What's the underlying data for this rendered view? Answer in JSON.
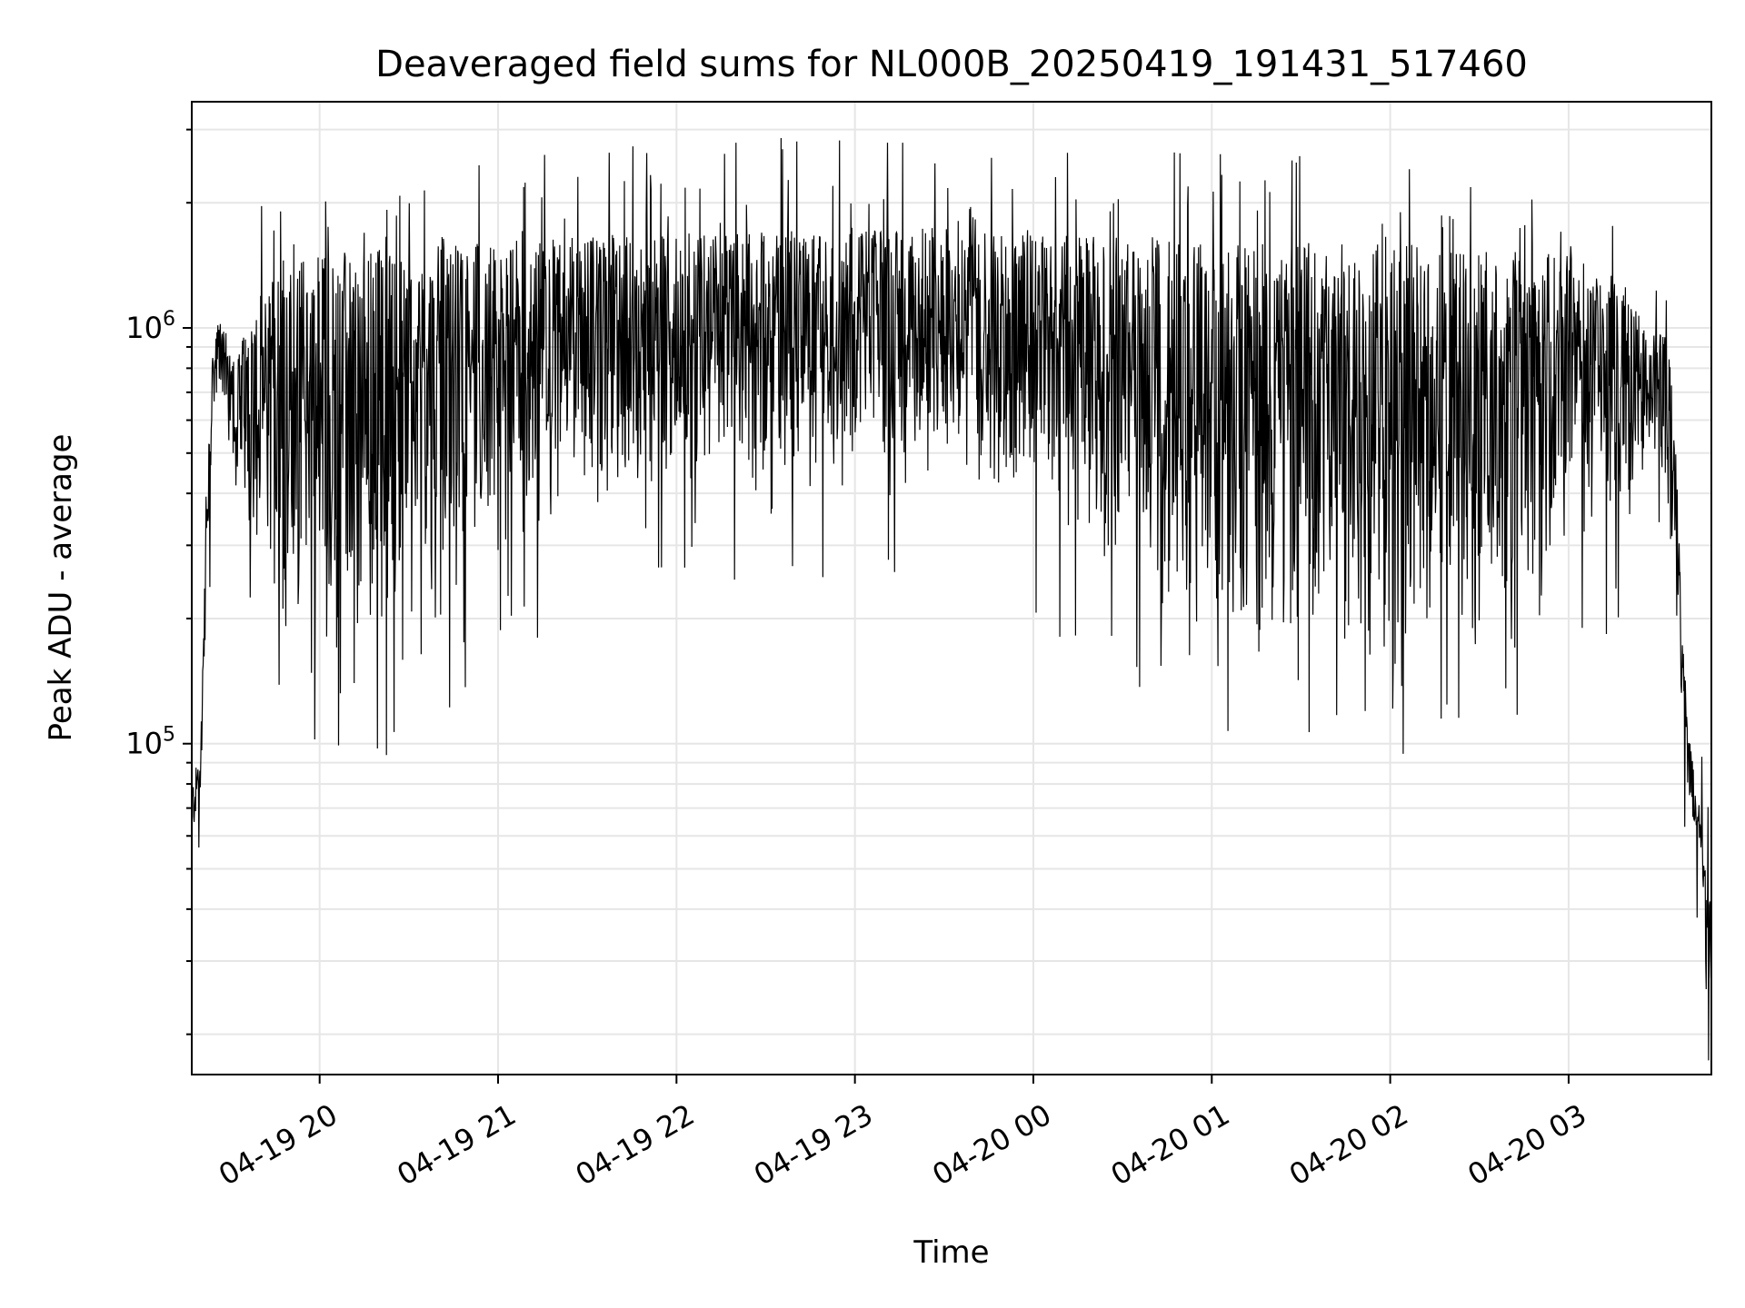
{
  "chart_data": {
    "type": "line",
    "title": "Deaveraged field sums for NL000B_20250419_191431_517460",
    "xlabel": "Time",
    "ylabel": "Peak ADU - average",
    "yscale": "log",
    "ylim": [
      16000,
      3500000
    ],
    "xlim": [
      "2025-04-19 19:17",
      "2025-04-20 03:48"
    ],
    "x_tick_labels": [
      "04-19 20",
      "04-19 21",
      "04-19 22",
      "04-19 23",
      "04-20 00",
      "04-20 01",
      "04-20 02",
      "04-20 03"
    ],
    "y_tick_labels": [
      {
        "value": 100000,
        "base": "10",
        "exp": "5"
      },
      {
        "value": 1000000,
        "base": "10",
        "exp": "6"
      }
    ],
    "grid": true,
    "line_color": "#000000",
    "series": [
      {
        "x": [
          "2025-04-19 19:17",
          "2025-04-19 19:18",
          "2025-04-19 19:20",
          "2025-04-19 19:22",
          "2025-04-19 19:24",
          "2025-04-19 19:26",
          "2025-04-19 19:28",
          "2025-04-19 19:30",
          "2025-04-19 19:32",
          "2025-04-19 19:35",
          "2025-04-19 19:38",
          "2025-04-19 19:40",
          "2025-04-19 19:43",
          "2025-04-19 19:46",
          "2025-04-19 19:50",
          "2025-04-19 19:55",
          "2025-04-19 20:00",
          "2025-04-19 20:10",
          "2025-04-19 20:20",
          "2025-04-19 20:30",
          "2025-04-19 20:45",
          "2025-04-19 21:00",
          "2025-04-19 21:15",
          "2025-04-19 21:30",
          "2025-04-19 21:45",
          "2025-04-19 22:00",
          "2025-04-19 22:30",
          "2025-04-19 23:00",
          "2025-04-19 23:30",
          "2025-04-20 00:00",
          "2025-04-20 00:30",
          "2025-04-20 01:00",
          "2025-04-20 01:30",
          "2025-04-20 02:00",
          "2025-04-20 02:30",
          "2025-04-20 03:00",
          "2025-04-20 03:15",
          "2025-04-20 03:25",
          "2025-04-20 03:30",
          "2025-04-20 03:35",
          "2025-04-20 03:38",
          "2025-04-20 03:41",
          "2025-04-20 03:44",
          "2025-04-20 03:48"
        ],
        "y_low": [
          55000,
          60000,
          70000,
          200000,
          550000,
          700000,
          600000,
          500000,
          450000,
          350000,
          300000,
          250000,
          200000,
          170000,
          150000,
          140000,
          140000,
          150000,
          160000,
          170000,
          200000,
          250000,
          300000,
          350000,
          380000,
          400000,
          420000,
          450000,
          460000,
          350000,
          250000,
          180000,
          160000,
          150000,
          180000,
          250000,
          350000,
          420000,
          450000,
          300000,
          100000,
          70000,
          50000,
          20000
        ],
        "y_high": [
          80000,
          85000,
          100000,
          400000,
          850000,
          1050000,
          1000000,
          900000,
          850000,
          1000000,
          1100000,
          1200000,
          1300000,
          1400000,
          1500000,
          1500000,
          1550000,
          1550000,
          1550000,
          1550000,
          1600000,
          1600000,
          1650000,
          1650000,
          1700000,
          1700000,
          1750000,
          1750000,
          1750000,
          1700000,
          1650000,
          1600000,
          1600000,
          1600000,
          1550000,
          1500000,
          1300000,
          1050000,
          1000000,
          900000,
          200000,
          100000,
          70000,
          40000
        ]
      }
    ]
  }
}
